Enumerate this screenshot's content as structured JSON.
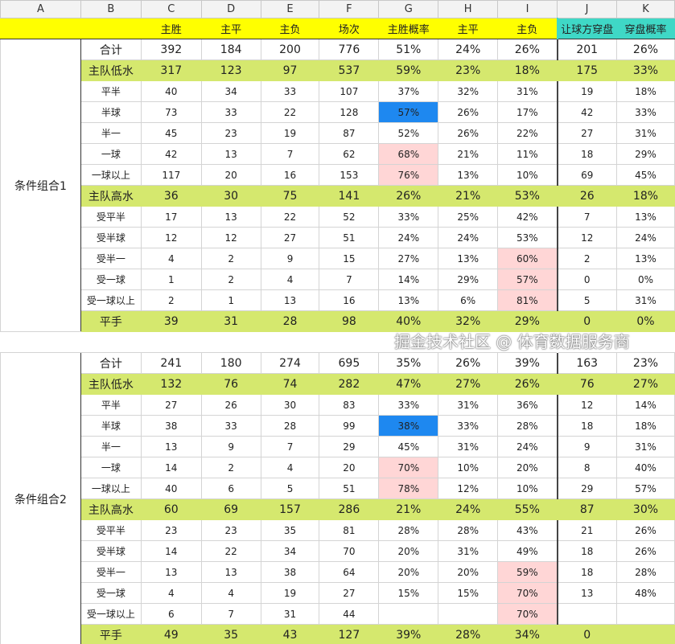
{
  "columns": [
    "A",
    "B",
    "C",
    "D",
    "E",
    "F",
    "G",
    "H",
    "I",
    "J",
    "K"
  ],
  "header": [
    "",
    "",
    "主胜",
    "主平",
    "主负",
    "场次",
    "主胜概率",
    "主平",
    "主负",
    "让球方穿盘",
    "穿盘概率"
  ],
  "colors": {
    "header": "#ffff00",
    "header_teal": "#3fd8c6",
    "group_row": "#d5e86e",
    "highlight_blue": "#1e88f0",
    "highlight_pink": "#ffd6d6"
  },
  "blocks": [
    {
      "label": "条件组合1",
      "rows": [
        {
          "type": "total",
          "cells": [
            "合计",
            "392",
            "184",
            "200",
            "776",
            "51%",
            "24%",
            "26%",
            "201",
            "26%"
          ]
        },
        {
          "type": "green",
          "cells": [
            "主队低水",
            "317",
            "123",
            "97",
            "537",
            "59%",
            "23%",
            "18%",
            "175",
            "33%"
          ]
        },
        {
          "cells": [
            "平半",
            "40",
            "34",
            "33",
            "107",
            "37%",
            "32%",
            "31%",
            "19",
            "18%"
          ]
        },
        {
          "cells": [
            "半球",
            "73",
            "33",
            "22",
            "128",
            "57%",
            "26%",
            "17%",
            "42",
            "33%"
          ],
          "hl": {
            "G": "blue"
          }
        },
        {
          "cells": [
            "半一",
            "45",
            "23",
            "19",
            "87",
            "52%",
            "26%",
            "22%",
            "27",
            "31%"
          ]
        },
        {
          "cells": [
            "一球",
            "42",
            "13",
            "7",
            "62",
            "68%",
            "21%",
            "11%",
            "18",
            "29%"
          ],
          "hl": {
            "G": "pink"
          }
        },
        {
          "cells": [
            "一球以上",
            "117",
            "20",
            "16",
            "153",
            "76%",
            "13%",
            "10%",
            "69",
            "45%"
          ],
          "hl": {
            "G": "pink"
          }
        },
        {
          "type": "green",
          "cells": [
            "主队高水",
            "36",
            "30",
            "75",
            "141",
            "26%",
            "21%",
            "53%",
            "26",
            "18%"
          ]
        },
        {
          "cells": [
            "受平半",
            "17",
            "13",
            "22",
            "52",
            "33%",
            "25%",
            "42%",
            "7",
            "13%"
          ]
        },
        {
          "cells": [
            "受半球",
            "12",
            "12",
            "27",
            "51",
            "24%",
            "24%",
            "53%",
            "12",
            "24%"
          ]
        },
        {
          "cells": [
            "受半一",
            "4",
            "2",
            "9",
            "15",
            "27%",
            "13%",
            "60%",
            "2",
            "13%"
          ],
          "hl": {
            "I": "pink"
          }
        },
        {
          "cells": [
            "受一球",
            "1",
            "2",
            "4",
            "7",
            "14%",
            "29%",
            "57%",
            "0",
            "0%"
          ],
          "hl": {
            "I": "pink"
          }
        },
        {
          "cells": [
            "受一球以上",
            "2",
            "1",
            "13",
            "16",
            "13%",
            "6%",
            "81%",
            "5",
            "31%"
          ],
          "hl": {
            "I": "pink"
          }
        },
        {
          "type": "green",
          "cells": [
            "平手",
            "39",
            "31",
            "28",
            "98",
            "40%",
            "32%",
            "29%",
            "0",
            "0%"
          ]
        }
      ]
    },
    {
      "label": "条件组合2",
      "rows": [
        {
          "type": "total",
          "cells": [
            "合计",
            "241",
            "180",
            "274",
            "695",
            "35%",
            "26%",
            "39%",
            "163",
            "23%"
          ]
        },
        {
          "type": "green",
          "cells": [
            "主队低水",
            "132",
            "76",
            "74",
            "282",
            "47%",
            "27%",
            "26%",
            "76",
            "27%"
          ]
        },
        {
          "cells": [
            "平半",
            "27",
            "26",
            "30",
            "83",
            "33%",
            "31%",
            "36%",
            "12",
            "14%"
          ]
        },
        {
          "cells": [
            "半球",
            "38",
            "33",
            "28",
            "99",
            "38%",
            "33%",
            "28%",
            "18",
            "18%"
          ],
          "hl": {
            "G": "blue"
          }
        },
        {
          "cells": [
            "半一",
            "13",
            "9",
            "7",
            "29",
            "45%",
            "31%",
            "24%",
            "9",
            "31%"
          ]
        },
        {
          "cells": [
            "一球",
            "14",
            "2",
            "4",
            "20",
            "70%",
            "10%",
            "20%",
            "8",
            "40%"
          ],
          "hl": {
            "G": "pink"
          }
        },
        {
          "cells": [
            "一球以上",
            "40",
            "6",
            "5",
            "51",
            "78%",
            "12%",
            "10%",
            "29",
            "57%"
          ],
          "hl": {
            "G": "pink"
          }
        },
        {
          "type": "green",
          "cells": [
            "主队高水",
            "60",
            "69",
            "157",
            "286",
            "21%",
            "24%",
            "55%",
            "87",
            "30%"
          ]
        },
        {
          "cells": [
            "受平半",
            "23",
            "23",
            "35",
            "81",
            "28%",
            "28%",
            "43%",
            "21",
            "26%"
          ]
        },
        {
          "cells": [
            "受半球",
            "14",
            "22",
            "34",
            "70",
            "20%",
            "31%",
            "49%",
            "18",
            "26%"
          ]
        },
        {
          "cells": [
            "受半一",
            "13",
            "13",
            "38",
            "64",
            "20%",
            "20%",
            "59%",
            "18",
            "28%"
          ],
          "hl": {
            "I": "pink"
          }
        },
        {
          "cells": [
            "受一球",
            "4",
            "4",
            "19",
            "27",
            "15%",
            "15%",
            "70%",
            "13",
            "48%"
          ],
          "hl": {
            "I": "pink"
          }
        },
        {
          "cells": [
            "受一球以上",
            "6",
            "7",
            "31",
            "44",
            "",
            "",
            "70%",
            "",
            ""
          ],
          "hl": {
            "I": "pink"
          }
        },
        {
          "type": "green",
          "cells": [
            "平手",
            "49",
            "35",
            "43",
            "127",
            "39%",
            "28%",
            "34%",
            "0",
            ""
          ]
        }
      ]
    }
  ],
  "watermark": "掘金技术社区 @ 体育数据服务商"
}
